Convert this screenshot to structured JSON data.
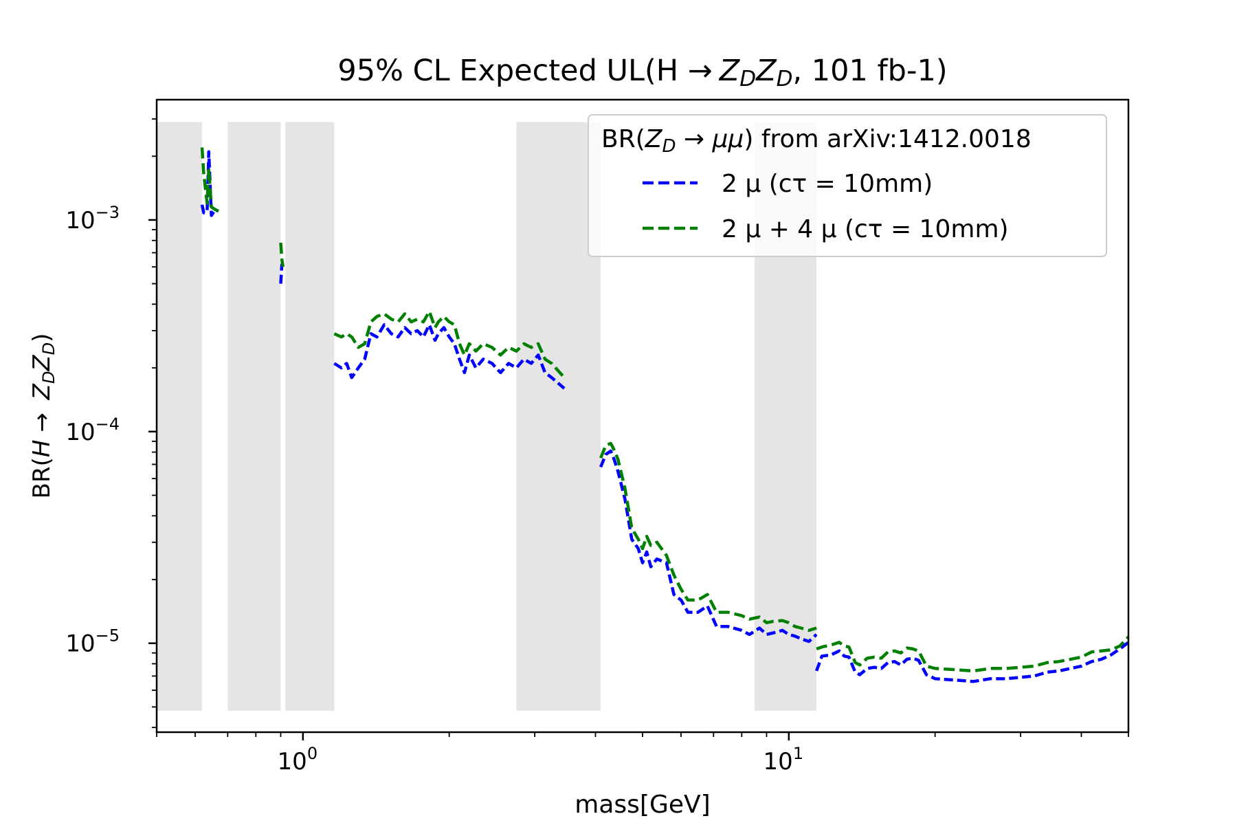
{
  "chart_data": {
    "type": "line",
    "title": "95% CL Expected UL(H → Z_D Z_D, 101 fb-1)",
    "title_parts": {
      "prefix": "95% CL Expected UL(H ",
      "arrow": "→",
      "zd1": "Z",
      "zd1_sub": "D",
      "zd2": "Z",
      "zd2_sub": "D",
      "suffix": ", 101 fb-1)"
    },
    "xlabel": "mass[GeV]",
    "ylabel_parts": {
      "prefix": "BR(",
      "h": "H",
      "arrow": " → ",
      "zd1": "Z",
      "zd1_sub": "D",
      "zd2": "Z",
      "zd2_sub": "D",
      "suffix": ")"
    },
    "x_scale": "log",
    "y_scale": "log",
    "xlim": [
      0.5,
      50
    ],
    "ylim": [
      3.8e-06,
      0.0037
    ],
    "x_ticks": [
      {
        "value": 1,
        "base": "10",
        "exp": "0"
      },
      {
        "value": 10,
        "base": "10",
        "exp": "1"
      }
    ],
    "y_ticks": [
      {
        "value": 1e-05,
        "base": "10",
        "exp": "−5"
      },
      {
        "value": 0.0001,
        "base": "10",
        "exp": "−4"
      },
      {
        "value": 0.001,
        "base": "10",
        "exp": "−3"
      }
    ],
    "legend": {
      "placement": "top-right",
      "title_parts": {
        "prefix": "BR(",
        "z": "Z",
        "z_sub": "D",
        "arrow": " → ",
        "mumu": "μμ",
        "suffix": ") from arXiv:1412.0018"
      }
    },
    "vetoed_regions": {
      "y_range": [
        4.8e-06,
        0.0029
      ],
      "color": "#e5e5e5",
      "ranges": [
        [
          0.5,
          0.62
        ],
        [
          0.7,
          0.9
        ],
        [
          0.92,
          1.16
        ],
        [
          2.75,
          4.1
        ],
        [
          8.5,
          11.4
        ]
      ]
    },
    "series": [
      {
        "name": "2 μ (cτ = 10mm)",
        "color": "#0000ff",
        "dash": "blue",
        "segments": [
          [
            [
              0.62,
              0.00118
            ],
            [
              0.625,
              0.00108
            ],
            [
              0.635,
              0.0011
            ],
            [
              0.64,
              0.0021
            ],
            [
              0.648,
              0.00105
            ],
            [
              0.66,
              0.00112
            ],
            [
              0.67,
              0.0011
            ]
          ],
          [
            [
              0.9,
              0.0005
            ],
            [
              0.905,
              0.00062
            ]
          ],
          [
            [
              1.16,
              0.00021
            ],
            [
              1.2,
              0.0002
            ],
            [
              1.23,
              0.00021
            ],
            [
              1.26,
              0.00018
            ],
            [
              1.3,
              0.0002
            ],
            [
              1.34,
              0.00022
            ],
            [
              1.38,
              0.00029
            ],
            [
              1.42,
              0.00028
            ],
            [
              1.47,
              0.00032
            ],
            [
              1.52,
              0.00029
            ],
            [
              1.57,
              0.00028
            ],
            [
              1.62,
              0.00031
            ],
            [
              1.67,
              0.00029
            ],
            [
              1.72,
              0.0003
            ],
            [
              1.77,
              0.00028
            ],
            [
              1.82,
              0.00032
            ],
            [
              1.87,
              0.00027
            ],
            [
              1.9,
              0.00029
            ],
            [
              1.95,
              0.00031
            ],
            [
              2.0,
              0.00028
            ],
            [
              2.05,
              0.00026
            ],
            [
              2.1,
              0.00022
            ],
            [
              2.15,
              0.00019
            ],
            [
              2.2,
              0.00023
            ],
            [
              2.27,
              0.0002
            ],
            [
              2.35,
              0.00022
            ],
            [
              2.45,
              0.00021
            ],
            [
              2.55,
              0.00019
            ],
            [
              2.65,
              0.00021
            ],
            [
              2.75,
              0.0002
            ],
            [
              2.85,
              0.00022
            ],
            [
              2.95,
              0.00021
            ],
            [
              3.05,
              0.00023
            ],
            [
              3.15,
              0.00019
            ],
            [
              3.25,
              0.00018
            ],
            [
              3.45,
              0.00016
            ]
          ],
          [
            [
              4.1,
              6.8e-05
            ],
            [
              4.2,
              7.8e-05
            ],
            [
              4.3,
              8.1e-05
            ],
            [
              4.37,
              7.4e-05
            ],
            [
              4.45,
              6.5e-05
            ],
            [
              4.6,
              4.8e-05
            ],
            [
              4.75,
              3.1e-05
            ],
            [
              4.9,
              2.8e-05
            ],
            [
              5.0,
              2.4e-05
            ],
            [
              5.1,
              2.7e-05
            ],
            [
              5.2,
              2.3e-05
            ],
            [
              5.35,
              2.5e-05
            ],
            [
              5.6,
              2.4e-05
            ],
            [
              5.8,
              1.7e-05
            ],
            [
              6.0,
              1.6e-05
            ],
            [
              6.2,
              1.4e-05
            ],
            [
              6.5,
              1.4e-05
            ],
            [
              6.8,
              1.5e-05
            ],
            [
              7.1,
              1.2e-05
            ],
            [
              7.5,
              1.2e-05
            ],
            [
              8.0,
              1.15e-05
            ],
            [
              8.3,
              1.1e-05
            ],
            [
              8.7,
              1.18e-05
            ],
            [
              9.0,
              1.1e-05
            ],
            [
              9.3,
              1.12e-05
            ],
            [
              9.7,
              1.15e-05
            ],
            [
              10.0,
              1.1e-05
            ],
            [
              10.3,
              1.08e-05
            ],
            [
              10.6,
              1.05e-05
            ],
            [
              11.0,
              1.02e-05
            ],
            [
              11.4,
              1.1e-05
            ]
          ],
          [
            [
              11.4,
              7.4e-06
            ],
            [
              11.7,
              8.7e-06
            ],
            [
              12.2,
              8.8e-06
            ],
            [
              12.7,
              9.2e-06
            ],
            [
              13.0,
              8.7e-06
            ],
            [
              13.3,
              8.6e-06
            ],
            [
              13.7,
              7.3e-06
            ],
            [
              14.0,
              7.1e-06
            ],
            [
              14.5,
              7.6e-06
            ],
            [
              15.0,
              7.7e-06
            ],
            [
              15.5,
              7.6e-06
            ],
            [
              16.0,
              8.1e-06
            ],
            [
              16.5,
              8.2e-06
            ],
            [
              17.0,
              7.9e-06
            ],
            [
              17.5,
              8.4e-06
            ],
            [
              18.0,
              8.5e-06
            ],
            [
              18.5,
              8.3e-06
            ],
            [
              19.2,
              7.1e-06
            ],
            [
              20.0,
              6.8e-06
            ],
            [
              22.0,
              6.7e-06
            ],
            [
              24.0,
              6.6e-06
            ],
            [
              26.0,
              6.8e-06
            ],
            [
              28.0,
              6.8e-06
            ],
            [
              30.0,
              6.9e-06
            ],
            [
              32.0,
              7e-06
            ],
            [
              34.0,
              7.3e-06
            ],
            [
              36.0,
              7.4e-06
            ],
            [
              38.0,
              7.6e-06
            ],
            [
              40.0,
              7.8e-06
            ],
            [
              42.0,
              8.2e-06
            ],
            [
              44.0,
              8.4e-06
            ],
            [
              46.0,
              8.8e-06
            ],
            [
              48.0,
              9.4e-06
            ],
            [
              50.0,
              1.01e-05
            ]
          ]
        ]
      },
      {
        "name": "2 μ + 4 μ (cτ = 10mm)",
        "color": "#008000",
        "dash": "green",
        "segments": [
          [
            [
              0.62,
              0.0022
            ],
            [
              0.625,
              0.00165
            ],
            [
              0.635,
              0.0012
            ],
            [
              0.64,
              0.00175
            ],
            [
              0.648,
              0.00115
            ],
            [
              0.66,
              0.00112
            ],
            [
              0.67,
              0.0011
            ]
          ],
          [
            [
              0.9,
              0.00078
            ],
            [
              0.905,
              0.00065
            ],
            [
              0.91,
              0.0006
            ]
          ],
          [
            [
              1.16,
              0.00029
            ],
            [
              1.2,
              0.00028
            ],
            [
              1.23,
              0.00029
            ],
            [
              1.26,
              0.00028
            ],
            [
              1.3,
              0.00025
            ],
            [
              1.34,
              0.00026
            ],
            [
              1.38,
              0.00033
            ],
            [
              1.42,
              0.00035
            ],
            [
              1.47,
              0.00036
            ],
            [
              1.52,
              0.00034
            ],
            [
              1.57,
              0.00033
            ],
            [
              1.62,
              0.00036
            ],
            [
              1.67,
              0.00033
            ],
            [
              1.72,
              0.00034
            ],
            [
              1.77,
              0.00033
            ],
            [
              1.82,
              0.00037
            ],
            [
              1.87,
              0.00031
            ],
            [
              1.9,
              0.00033
            ],
            [
              1.95,
              0.00035
            ],
            [
              2.0,
              0.00033
            ],
            [
              2.05,
              0.00032
            ],
            [
              2.1,
              0.00026
            ],
            [
              2.15,
              0.00023
            ],
            [
              2.2,
              0.00026
            ],
            [
              2.27,
              0.00024
            ],
            [
              2.35,
              0.00026
            ],
            [
              2.45,
              0.00025
            ],
            [
              2.55,
              0.00023
            ],
            [
              2.65,
              0.00025
            ],
            [
              2.75,
              0.00024
            ],
            [
              2.85,
              0.00026
            ],
            [
              2.95,
              0.00025
            ],
            [
              3.05,
              0.00026
            ],
            [
              3.15,
              0.00022
            ],
            [
              3.25,
              0.00021
            ],
            [
              3.45,
              0.00018
            ]
          ],
          [
            [
              4.1,
              7.5e-05
            ],
            [
              4.2,
              8.6e-05
            ],
            [
              4.3,
              8.8e-05
            ],
            [
              4.37,
              8.2e-05
            ],
            [
              4.45,
              7.4e-05
            ],
            [
              4.6,
              5.4e-05
            ],
            [
              4.75,
              3.5e-05
            ],
            [
              4.9,
              3.1e-05
            ],
            [
              5.0,
              2.8e-05
            ],
            [
              5.1,
              3.2e-05
            ],
            [
              5.2,
              2.9e-05
            ],
            [
              5.35,
              3e-05
            ],
            [
              5.6,
              2.6e-05
            ],
            [
              5.8,
              2.1e-05
            ],
            [
              6.0,
              1.8e-05
            ],
            [
              6.2,
              1.6e-05
            ],
            [
              6.5,
              1.6e-05
            ],
            [
              6.8,
              1.7e-05
            ],
            [
              7.1,
              1.4e-05
            ],
            [
              7.5,
              1.4e-05
            ],
            [
              8.0,
              1.35e-05
            ],
            [
              8.3,
              1.3e-05
            ],
            [
              8.7,
              1.33e-05
            ],
            [
              9.0,
              1.25e-05
            ],
            [
              9.3,
              1.27e-05
            ],
            [
              9.7,
              1.28e-05
            ],
            [
              10.0,
              1.25e-05
            ],
            [
              10.3,
              1.2e-05
            ],
            [
              10.6,
              1.18e-05
            ],
            [
              11.0,
              1.15e-05
            ],
            [
              11.4,
              1.18e-05
            ]
          ],
          [
            [
              11.4,
              9.4e-06
            ],
            [
              11.7,
              9.6e-06
            ],
            [
              12.2,
              9.8e-06
            ],
            [
              12.7,
              1.01e-05
            ],
            [
              13.0,
              9.7e-06
            ],
            [
              13.3,
              9.6e-06
            ],
            [
              13.7,
              8.1e-06
            ],
            [
              14.0,
              7.9e-06
            ],
            [
              14.5,
              8.5e-06
            ],
            [
              15.0,
              8.6e-06
            ],
            [
              15.5,
              8.5e-06
            ],
            [
              16.0,
              9.1e-06
            ],
            [
              16.5,
              9.2e-06
            ],
            [
              17.0,
              9e-06
            ],
            [
              17.5,
              9.5e-06
            ],
            [
              18.0,
              9.4e-06
            ],
            [
              18.5,
              9.2e-06
            ],
            [
              19.2,
              7.8e-06
            ],
            [
              20.0,
              7.6e-06
            ],
            [
              22.0,
              7.5e-06
            ],
            [
              24.0,
              7.4e-06
            ],
            [
              26.0,
              7.6e-06
            ],
            [
              28.0,
              7.6e-06
            ],
            [
              30.0,
              7.7e-06
            ],
            [
              32.0,
              7.8e-06
            ],
            [
              34.0,
              8.1e-06
            ],
            [
              36.0,
              8.2e-06
            ],
            [
              38.0,
              8.4e-06
            ],
            [
              40.0,
              8.6e-06
            ],
            [
              42.0,
              9.1e-06
            ],
            [
              44.0,
              9.2e-06
            ],
            [
              46.0,
              9.3e-06
            ],
            [
              48.0,
              9.7e-06
            ],
            [
              50.0,
              1.07e-05
            ]
          ]
        ]
      }
    ]
  }
}
